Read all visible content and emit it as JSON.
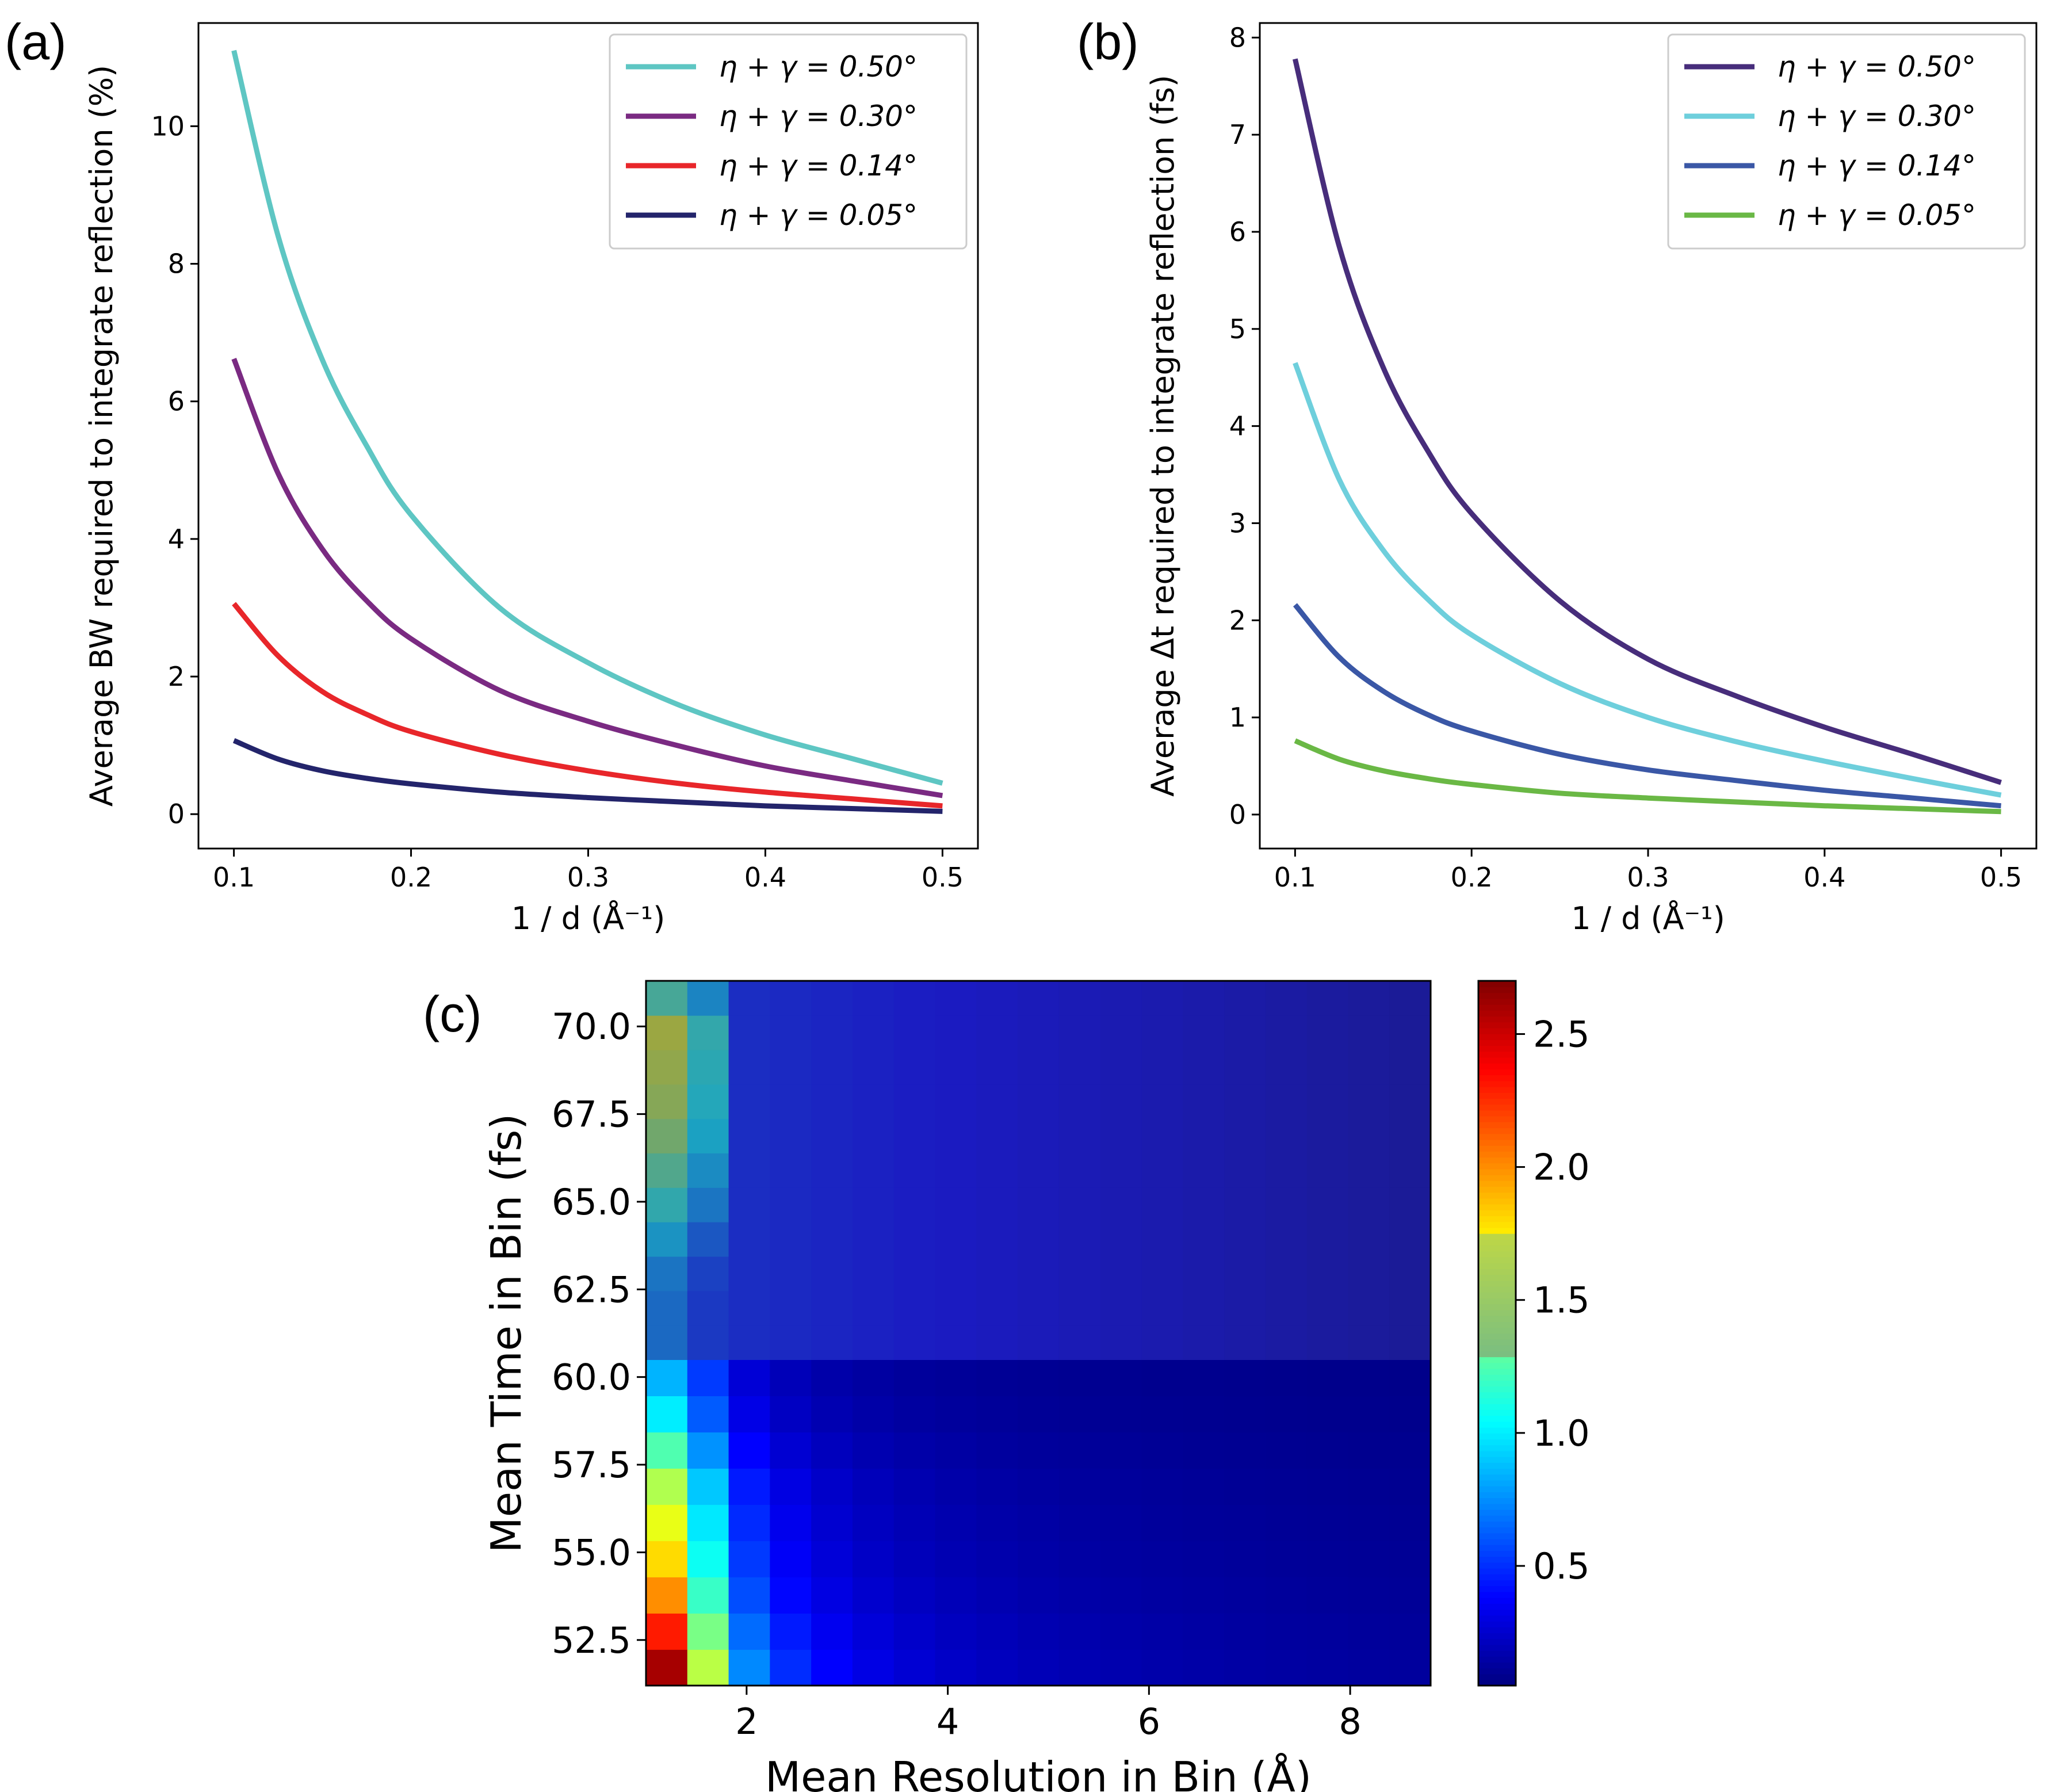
{
  "panel_labels": {
    "a": "(a)",
    "b": "(b)",
    "c": "(c)"
  },
  "chart_data": [
    {
      "id": "a",
      "type": "line",
      "xlabel": "1 / d (Å⁻¹)",
      "ylabel": "Average BW required to integrate reflection (%)",
      "xlim": [
        0.08,
        0.52
      ],
      "ylim": [
        -0.5,
        11.5
      ],
      "xticks": [
        0.1,
        0.2,
        0.3,
        0.4,
        0.5
      ],
      "xtick_labels": [
        "0.1",
        "0.2",
        "0.3",
        "0.4",
        "0.5"
      ],
      "yticks": [
        0,
        2,
        4,
        6,
        8,
        10
      ],
      "ytick_labels": [
        "0",
        "2",
        "4",
        "6",
        "8",
        "10"
      ],
      "legend_position": "top-right",
      "x": [
        0.1,
        0.125,
        0.15,
        0.175,
        0.2,
        0.25,
        0.3,
        0.35,
        0.4,
        0.45,
        0.5
      ],
      "series": [
        {
          "name": "η + γ = 0.50°",
          "color": "#5ec6c3",
          "values": [
            11.1,
            8.4,
            6.6,
            5.35,
            4.35,
            3.0,
            2.2,
            1.6,
            1.15,
            0.8,
            0.45
          ]
        },
        {
          "name": "η + γ = 0.30°",
          "color": "#7a2a82",
          "values": [
            6.62,
            4.95,
            3.85,
            3.1,
            2.55,
            1.8,
            1.35,
            1.0,
            0.7,
            0.48,
            0.27
          ]
        },
        {
          "name": "η + γ = 0.14°",
          "color": "#e8262a",
          "values": [
            3.06,
            2.3,
            1.78,
            1.45,
            1.2,
            0.87,
            0.63,
            0.45,
            0.32,
            0.22,
            0.12
          ]
        },
        {
          "name": "η + γ = 0.05°",
          "color": "#23246b",
          "values": [
            1.07,
            0.8,
            0.63,
            0.52,
            0.44,
            0.32,
            0.24,
            0.18,
            0.12,
            0.08,
            0.04
          ]
        }
      ]
    },
    {
      "id": "b",
      "type": "line",
      "xlabel": "1 / d (Å⁻¹)",
      "ylabel": "Average Δt required to integrate reflection (fs)",
      "xlim": [
        0.08,
        0.52
      ],
      "ylim": [
        -0.35,
        8.15
      ],
      "xticks": [
        0.1,
        0.2,
        0.3,
        0.4,
        0.5
      ],
      "xtick_labels": [
        "0.1",
        "0.2",
        "0.3",
        "0.4",
        "0.5"
      ],
      "yticks": [
        0,
        1,
        2,
        3,
        4,
        5,
        6,
        7,
        8
      ],
      "ytick_labels": [
        "0",
        "1",
        "2",
        "3",
        "4",
        "5",
        "6",
        "7",
        "8"
      ],
      "legend_position": "top-right",
      "x": [
        0.1,
        0.125,
        0.15,
        0.175,
        0.2,
        0.25,
        0.3,
        0.35,
        0.4,
        0.45,
        0.5
      ],
      "series": [
        {
          "name": "η + γ = 0.50°",
          "color": "#472d7b",
          "values": [
            7.78,
            5.85,
            4.6,
            3.75,
            3.1,
            2.2,
            1.6,
            1.22,
            0.9,
            0.62,
            0.33
          ]
        },
        {
          "name": "η + γ = 0.30°",
          "color": "#6ecfdc",
          "values": [
            4.65,
            3.45,
            2.72,
            2.22,
            1.85,
            1.35,
            1.0,
            0.75,
            0.55,
            0.37,
            0.2
          ]
        },
        {
          "name": "η + γ = 0.14°",
          "color": "#3a57a6",
          "values": [
            2.16,
            1.62,
            1.27,
            1.03,
            0.86,
            0.62,
            0.46,
            0.35,
            0.25,
            0.17,
            0.09
          ]
        },
        {
          "name": "η + γ = 0.05°",
          "color": "#6ab845",
          "values": [
            0.76,
            0.57,
            0.45,
            0.37,
            0.31,
            0.22,
            0.17,
            0.13,
            0.09,
            0.06,
            0.03
          ]
        }
      ]
    },
    {
      "id": "c",
      "type": "heatmap",
      "xlabel": "Mean Resolution in Bin (Å)",
      "ylabel": "Mean Time in Bin (fs)",
      "xlim": [
        1.0,
        8.8
      ],
      "ylim": [
        51.2,
        71.3
      ],
      "xticks": [
        2,
        4,
        6,
        8
      ],
      "xtick_labels": [
        "2",
        "4",
        "6",
        "8"
      ],
      "yticks": [
        52.5,
        55.0,
        57.5,
        60.0,
        62.5,
        65.0,
        67.5,
        70.0
      ],
      "ytick_labels": [
        "52.5",
        "55.0",
        "57.5",
        "60.0",
        "62.5",
        "65.0",
        "67.5",
        "70.0"
      ],
      "split_time": 60.5,
      "n_cols": 19,
      "n_rows_low": 9,
      "n_rows_high": 11,
      "first_col_low": [
        2.6,
        2.3,
        2.0,
        1.8,
        1.65,
        1.5,
        1.25,
        1.0,
        0.85
      ],
      "first_col_high": [
        0.75,
        0.75,
        0.8,
        0.95,
        1.15,
        1.3,
        1.45,
        1.55,
        1.6,
        1.65,
        1.25
      ],
      "colorbar": {
        "range": [
          0.05,
          2.7
        ],
        "ticks": [
          0.5,
          1.0,
          1.5,
          2.0,
          2.5
        ],
        "tick_labels": [
          "0.5",
          "1.0",
          "1.5",
          "2.0",
          "2.5"
        ],
        "lower_colormap": "jet",
        "upper_colormap": "dimmed-jet",
        "split_value": 1.28
      }
    }
  ]
}
